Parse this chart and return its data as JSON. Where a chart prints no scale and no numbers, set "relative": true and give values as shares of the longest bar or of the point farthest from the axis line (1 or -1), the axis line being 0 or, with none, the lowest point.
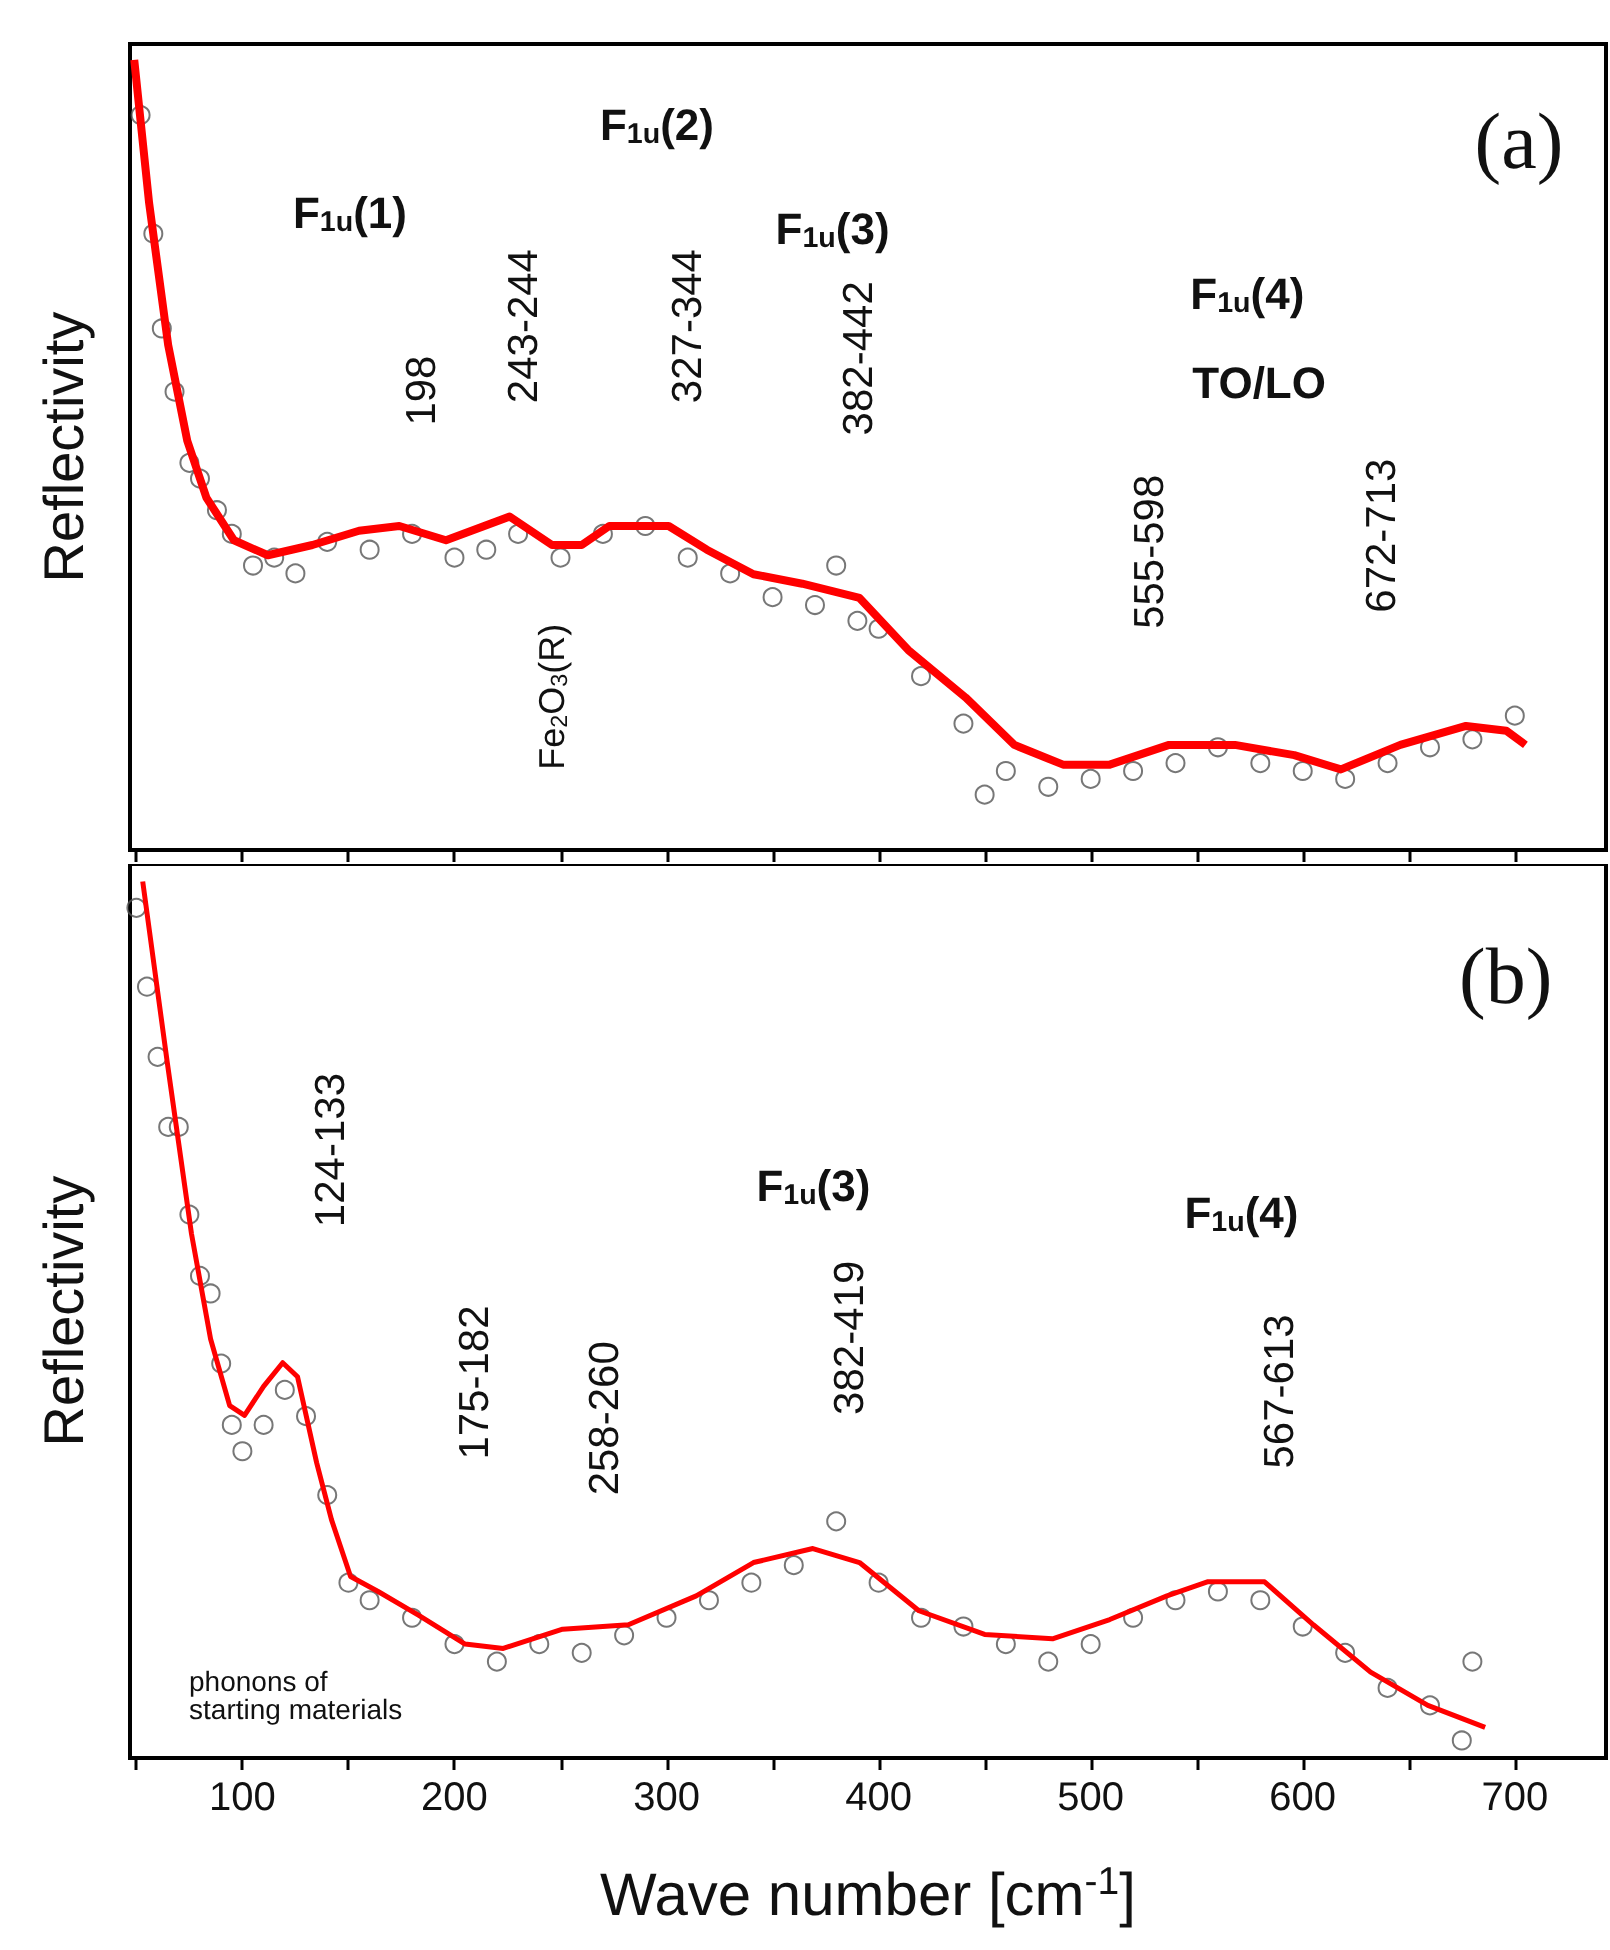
{
  "chart_data": [
    {
      "type": "line",
      "relative": true,
      "ylabel": "Reflectivity",
      "xlim": [
        47,
        743
      ],
      "xticks": [
        {
          "value": 50,
          "label": null
        },
        100,
        {
          "value": 150,
          "label": null
        },
        200,
        {
          "value": 250,
          "label": null
        },
        300,
        {
          "value": 350,
          "label": null
        },
        400,
        {
          "value": 450,
          "label": null
        },
        500,
        {
          "value": 550,
          "label": null
        },
        600,
        {
          "value": 650,
          "label": null
        },
        700
      ],
      "tick_labels": false,
      "annotations": [
        "F$_{1u}$(1)",
        "F$_{1u}$(2)",
        "F$_{1u}$(3)",
        "F$_{1u}$(4)",
        "TO/LO",
        "198",
        "243-244",
        "327-344",
        "382-442",
        "555-598",
        "672-713",
        "Fe$_{2}$O$_{3}$(R)",
        "(a)"
      ],
      "series": [
        {
          "type": "scatter",
          "marker": "circle",
          "color": "#555555",
          "x": [
            52,
            58,
            62,
            68,
            75,
            80,
            88,
            95,
            105,
            115,
            125,
            140,
            160,
            180,
            200,
            215,
            230,
            250,
            270,
            290,
            310,
            330,
            350,
            370,
            380,
            390,
            400,
            420,
            440,
            450,
            460,
            480,
            500,
            520,
            540,
            560,
            580,
            600,
            620,
            640,
            660,
            680,
            700
          ],
          "values": [
            0.93,
            0.78,
            0.66,
            0.58,
            0.49,
            0.47,
            0.43,
            0.4,
            0.36,
            0.37,
            0.35,
            0.39,
            0.38,
            0.4,
            0.37,
            0.38,
            0.4,
            0.37,
            0.4,
            0.41,
            0.37,
            0.35,
            0.32,
            0.31,
            0.36,
            0.29,
            0.28,
            0.22,
            0.16,
            0.07,
            0.1,
            0.08,
            0.09,
            0.1,
            0.11,
            0.13,
            0.11,
            0.1,
            0.09,
            0.11,
            0.13,
            0.14,
            0.17
          ]
        },
        {
          "marker": "none",
          "color": "#ff0000",
          "x": [
            49,
            56,
            65,
            74,
            83,
            96,
            112,
            133,
            155,
            174,
            196,
            226,
            246,
            260,
            273,
            301,
            319,
            341,
            364,
            391,
            414,
            441,
            464,
            487,
            509,
            537,
            568,
            596,
            618,
            646,
            677,
            696,
            705
          ],
          "values": [
            1.0,
            0.819,
            0.639,
            0.518,
            0.446,
            0.392,
            0.373,
            0.386,
            0.404,
            0.41,
            0.392,
            0.422,
            0.386,
            0.386,
            0.41,
            0.41,
            0.38,
            0.349,
            0.337,
            0.319,
            0.253,
            0.193,
            0.133,
            0.108,
            0.108,
            0.133,
            0.133,
            0.12,
            0.102,
            0.133,
            0.157,
            0.151,
            0.133
          ]
        }
      ]
    },
    {
      "type": "line",
      "relative": true,
      "ylabel": "Reflectivity",
      "xlabel": "Wave number [cm$^{-1}$]",
      "xlim": [
        47,
        743
      ],
      "xticks": [
        {
          "value": 50,
          "label": null
        },
        100,
        {
          "value": 150,
          "label": null
        },
        200,
        {
          "value": 250,
          "label": null
        },
        300,
        {
          "value": 350,
          "label": null
        },
        400,
        {
          "value": 450,
          "label": null
        },
        500,
        {
          "value": 550,
          "label": null
        },
        600,
        {
          "value": 650,
          "label": null
        },
        700
      ],
      "tick_labels": "x",
      "annotations": [
        "(b)",
        "124-133",
        "175-182",
        "258-260",
        "F$_{1u}$(3)",
        "382-419",
        "F$_{1u}$(4)",
        "567-613",
        "phonons of\nstarting materials"
      ],
      "series": [
        {
          "type": "scatter",
          "marker": "circle",
          "color": "#555555",
          "x": [
            50,
            55,
            60,
            65,
            70,
            75,
            80,
            85,
            90,
            95,
            100,
            110,
            120,
            130,
            140,
            150,
            160,
            180,
            200,
            220,
            240,
            260,
            280,
            300,
            320,
            340,
            360,
            380,
            400,
            420,
            440,
            460,
            480,
            500,
            520,
            540,
            560,
            580,
            600,
            620,
            640,
            660,
            675,
            680
          ],
          "values": [
            0.97,
            0.88,
            0.8,
            0.72,
            0.72,
            0.62,
            0.55,
            0.53,
            0.45,
            0.38,
            0.35,
            0.38,
            0.42,
            0.39,
            0.3,
            0.2,
            0.18,
            0.16,
            0.13,
            0.11,
            0.13,
            0.12,
            0.14,
            0.16,
            0.18,
            0.2,
            0.22,
            0.27,
            0.2,
            0.16,
            0.15,
            0.13,
            0.11,
            0.13,
            0.16,
            0.18,
            0.19,
            0.18,
            0.15,
            0.12,
            0.08,
            0.06,
            0.02,
            0.11
          ]
        },
        {
          "marker": "none",
          "color": "#ff0000",
          "x": [
            53,
            64.6,
            76,
            85,
            94,
            101,
            110,
            119,
            126,
            135,
            142,
            151,
            164,
            183,
            205,
            223,
            251,
            282,
            314,
            341,
            369,
            391,
            419,
            450,
            482,
            509,
            536,
            555,
            582,
            605,
            632,
            659,
            686
          ],
          "values": [
            1.0,
            0.793,
            0.598,
            0.478,
            0.402,
            0.391,
            0.424,
            0.451,
            0.435,
            0.337,
            0.272,
            0.207,
            0.19,
            0.163,
            0.13,
            0.125,
            0.147,
            0.152,
            0.185,
            0.223,
            0.239,
            0.223,
            0.168,
            0.141,
            0.136,
            0.158,
            0.185,
            0.201,
            0.201,
            0.152,
            0.098,
            0.06,
            0.035
          ]
        }
      ]
    }
  ]
}
